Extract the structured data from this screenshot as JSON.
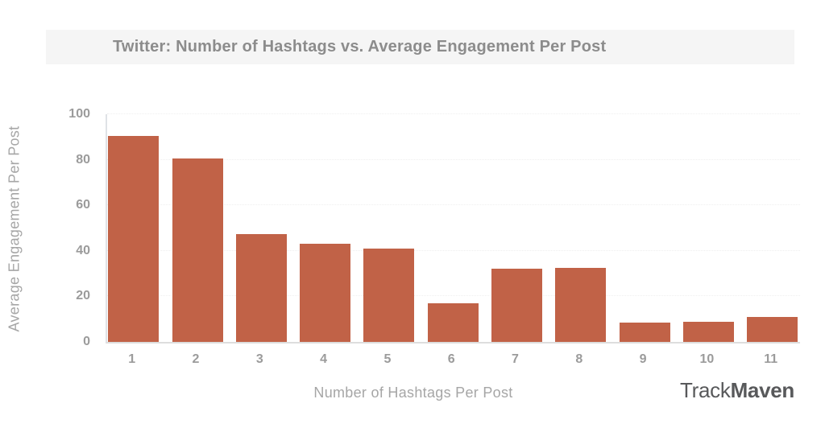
{
  "header": {
    "band_color": "#f5f5f5",
    "title_color": "#8c8c8c"
  },
  "brand": {
    "track": "Track",
    "maven": "Maven",
    "color": "#58595b"
  },
  "chart_data": {
    "type": "bar",
    "title": "Twitter: Number of Hashtags vs. Average Engagement Per Post",
    "xlabel": "Number of Hashtags Per Post",
    "ylabel": "Average Engagement Per Post",
    "categories": [
      "1",
      "2",
      "3",
      "4",
      "5",
      "6",
      "7",
      "8",
      "9",
      "10",
      "11"
    ],
    "values": [
      90.5,
      80.5,
      47.5,
      43,
      41,
      17,
      32,
      32.5,
      8.5,
      9,
      11
    ],
    "ylim": [
      0,
      100
    ],
    "yticks": [
      0,
      20,
      40,
      60,
      80,
      100
    ],
    "bar_color": "#c16247",
    "grid": "faint dotted horizontal lines at each y tick",
    "legend": "none"
  }
}
